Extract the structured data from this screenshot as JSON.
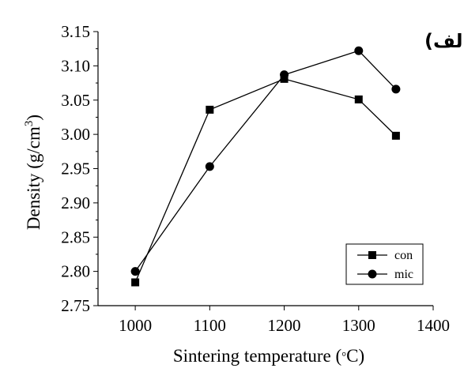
{
  "chart_data": {
    "type": "line",
    "title": "",
    "annotation": "الف)",
    "xlabel": "Sintering temperature (",
    "xlabel_unit_symbol": "°",
    "xlabel_unit_tail": "C)",
    "ylabel_prefix": "Density (g/cm",
    "ylabel_superscript": "3",
    "ylabel_suffix": ")",
    "xlim": [
      950,
      1400
    ],
    "ylim": [
      2.75,
      3.15
    ],
    "x_ticks": [
      1000,
      1100,
      1200,
      1300,
      1400
    ],
    "y_ticks": [
      "2.75",
      "2.80",
      "2.85",
      "2.90",
      "2.95",
      "3.00",
      "3.05",
      "3.10",
      "3.15"
    ],
    "grid": false,
    "legend_position": "bottom-right",
    "series": [
      {
        "name": "con",
        "marker": "square",
        "color": "#000000",
        "x": [
          1000,
          1100,
          1200,
          1300,
          1350
        ],
        "y": [
          2.784,
          3.036,
          3.081,
          3.051,
          2.998
        ]
      },
      {
        "name": "mic",
        "marker": "circle",
        "color": "#000000",
        "x": [
          1000,
          1100,
          1200,
          1300,
          1350
        ],
        "y": [
          2.8,
          2.953,
          3.087,
          3.122,
          3.066
        ]
      }
    ]
  }
}
